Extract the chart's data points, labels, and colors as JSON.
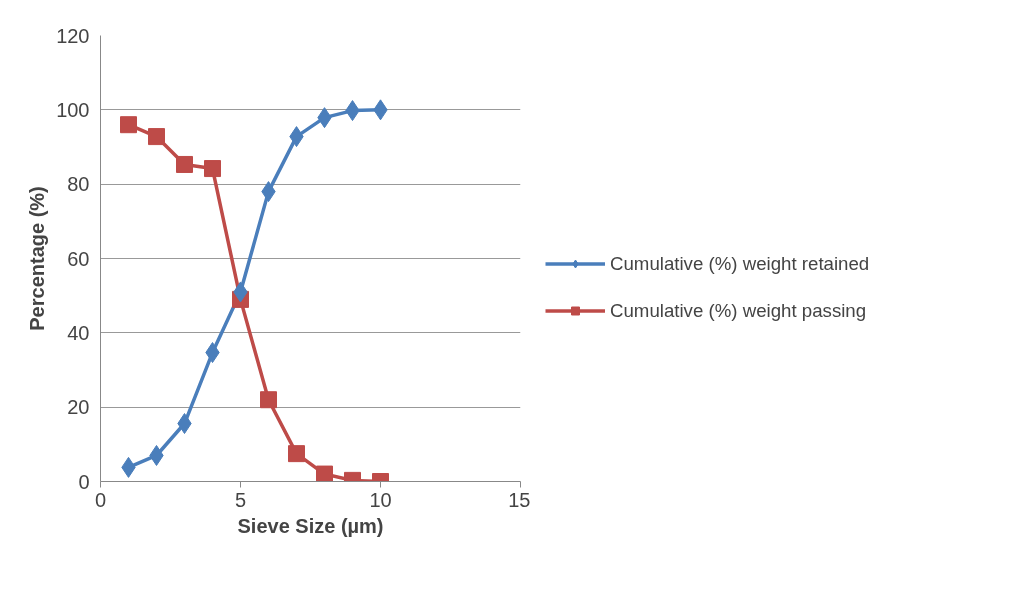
{
  "chart_data": {
    "type": "line",
    "xlabel": "Sieve Size (µm)",
    "ylabel": "Percentage (%)",
    "x": [
      1,
      2,
      3,
      4,
      5,
      6,
      7,
      8,
      9,
      10
    ],
    "series": [
      {
        "name": "Cumulative (%) weight retained",
        "color": "#4a7ebb",
        "marker": "diamond",
        "values": [
          3.8,
          7,
          15.6,
          34.7,
          51,
          78,
          92.8,
          97.9,
          99.8,
          100
        ]
      },
      {
        "name": "Cumulative (%) weight passing",
        "color": "#be4b48",
        "marker": "square",
        "values": [
          96,
          92.8,
          85.3,
          84.2,
          49,
          22,
          7.5,
          2,
          0.3,
          0
        ]
      }
    ],
    "xlim": [
      0,
      15
    ],
    "xticks": [
      0,
      5,
      10,
      15
    ],
    "ylim": [
      0,
      120
    ],
    "yticks": [
      0,
      20,
      40,
      60,
      80,
      100,
      120
    ],
    "grid": "y",
    "legend": "right",
    "line_style": "solid"
  }
}
